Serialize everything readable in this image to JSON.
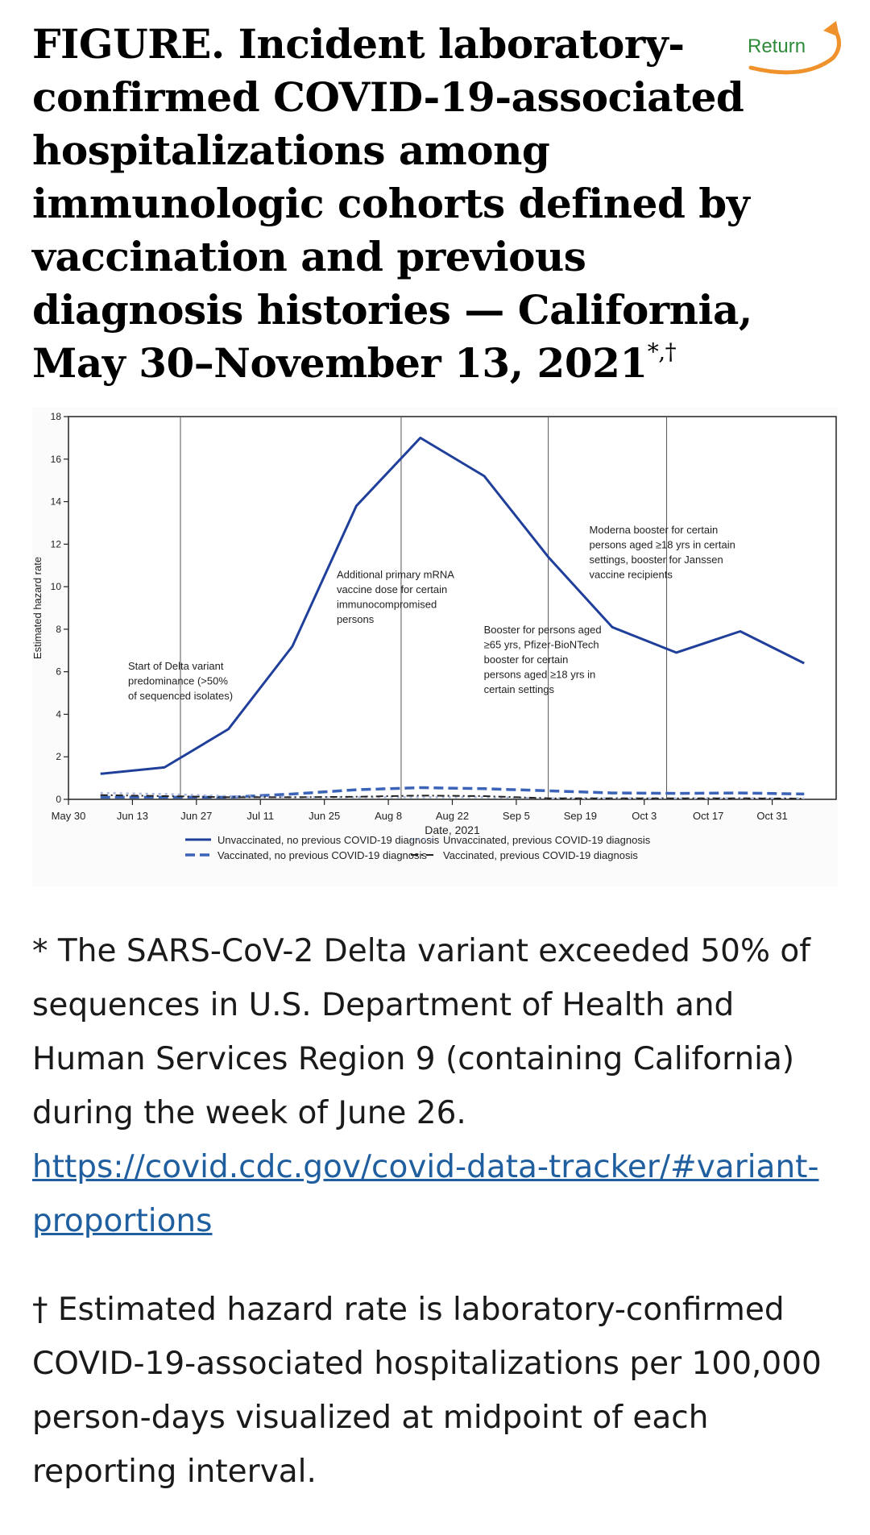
{
  "page": {
    "title": "FIGURE. Incident laboratory-confirmed COVID-19-associated hospitalizations among immunologic cohorts defined by vaccination and previous diagnosis histories — California, May 30–November 13, 2021",
    "title_marks": "*,†",
    "return_label": "Return",
    "colors": {
      "return_text": "#2e8b3a",
      "return_arrow": "#f0922b",
      "link": "#1f5fa0"
    }
  },
  "chart_data": {
    "type": "line",
    "xlabel": "Date, 2021",
    "ylabel": "Estimated hazard rate",
    "ylim": [
      0,
      18
    ],
    "yticks": [
      "0",
      "2",
      "4",
      "6",
      "8",
      "10",
      "12",
      "14",
      "16",
      "18"
    ],
    "x_ticks": [
      "May 30",
      "Jun 13",
      "Jun 27",
      "Jul 11",
      "Jun 25",
      "Aug 8",
      "Aug 22",
      "Sep 5",
      "Sep 19",
      "Oct 3",
      "Oct 17",
      "Oct 31"
    ],
    "grid": false,
    "legend_position": "bottom",
    "series": [
      {
        "name": "Unvaccinated, no previous COVID-19 diagnosis",
        "style": "solid",
        "color": "#1f3f9a",
        "points": [
          [
            0.5,
            1.2
          ],
          [
            1.5,
            1.5
          ],
          [
            2.5,
            3.3
          ],
          [
            3.5,
            7.2
          ],
          [
            4.5,
            13.8
          ],
          [
            5.5,
            17.0
          ],
          [
            6.5,
            15.2
          ],
          [
            7.5,
            11.4
          ],
          [
            8.5,
            8.1
          ],
          [
            9.5,
            6.9
          ],
          [
            10.5,
            7.9
          ],
          [
            11.5,
            6.4
          ]
        ]
      },
      {
        "name": "Vaccinated, no previous COVID-19 diagnosis",
        "style": "dashed",
        "color": "#3b63b8",
        "points": [
          [
            0.5,
            0.1
          ],
          [
            1.5,
            0.1
          ],
          [
            2.5,
            0.1
          ],
          [
            3.5,
            0.25
          ],
          [
            4.5,
            0.45
          ],
          [
            5.5,
            0.55
          ],
          [
            6.5,
            0.5
          ],
          [
            7.5,
            0.4
          ],
          [
            8.5,
            0.3
          ],
          [
            9.5,
            0.28
          ],
          [
            10.5,
            0.3
          ],
          [
            11.5,
            0.25
          ]
        ]
      },
      {
        "name": "Unvaccinated, previous COVID-19 diagnosis",
        "style": "dotted",
        "color": "#a9b7db",
        "points": [
          [
            0.5,
            0.3
          ],
          [
            1.5,
            0.25
          ],
          [
            2.5,
            0.15
          ],
          [
            3.5,
            0.1
          ],
          [
            4.5,
            0.1
          ],
          [
            5.5,
            0.1
          ],
          [
            6.5,
            0.1
          ],
          [
            7.5,
            0.05
          ],
          [
            8.5,
            0.05
          ],
          [
            9.5,
            0.05
          ],
          [
            10.5,
            0.05
          ],
          [
            11.5,
            0.05
          ]
        ]
      },
      {
        "name": "Vaccinated, previous COVID-19 diagnosis",
        "style": "dashdot",
        "color": "#222222",
        "points": [
          [
            0.5,
            0.2
          ],
          [
            1.5,
            0.15
          ],
          [
            2.5,
            0.1
          ],
          [
            3.5,
            0.1
          ],
          [
            4.5,
            0.12
          ],
          [
            5.5,
            0.18
          ],
          [
            6.5,
            0.15
          ],
          [
            7.5,
            0.05
          ],
          [
            8.5,
            0.05
          ],
          [
            9.5,
            0.05
          ],
          [
            10.5,
            0.05
          ],
          [
            11.5,
            0.03
          ]
        ]
      }
    ],
    "annotations": [
      {
        "x": 1.75,
        "lines": [
          "Start of Delta variant",
          "predominance (>50%",
          "of sequenced isolates)"
        ]
      },
      {
        "x": 5.2,
        "lines": [
          "Additional primary mRNA",
          "vaccine dose for certain",
          "immunocompromised",
          "persons"
        ]
      },
      {
        "x": 7.5,
        "lines": [
          "Booster for persons aged",
          "≥65 yrs, Pfizer-BioNTech",
          "booster for certain",
          "persons aged ≥18 yrs in",
          "certain settings"
        ]
      },
      {
        "x": 9.35,
        "lines": [
          "Moderna booster for certain",
          "persons aged ≥18 yrs in certain",
          "settings, booster for Janssen",
          "vaccine recipients"
        ]
      }
    ]
  },
  "notes": {
    "star": "* The SARS-CoV-2 Delta variant exceeded 50% of sequences in U.S. Department of Health and Human Services Region 9 (containing California) during the week of June 26.",
    "star_link": "https://covid.cdc.gov/covid-data-tracker/#variant-proportions",
    "dagger": "† Estimated hazard rate is laboratory-confirmed COVID-19-associated hospitalizations per 100,000 person-days visualized at midpoint of each reporting interval."
  }
}
